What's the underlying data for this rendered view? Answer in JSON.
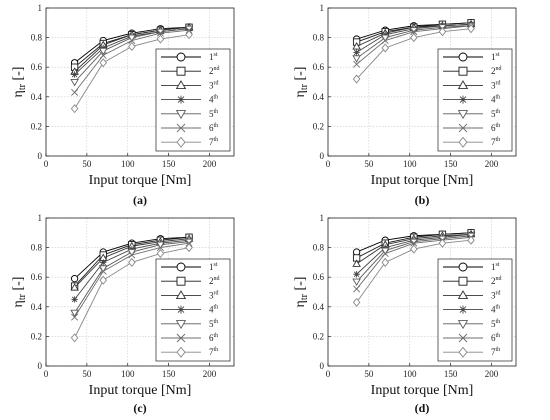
{
  "chart_data": [
    {
      "type": "line",
      "panel_label": "(a)",
      "xlabel": "Input torque [Nm]",
      "ylabel_main": "η",
      "ylabel_sub": "tr",
      "ylabel_unit": " [-]",
      "xlim": [
        0,
        230
      ],
      "ylim": [
        0,
        1
      ],
      "x_ticks": [
        "0",
        "50",
        "100",
        "150",
        "200"
      ],
      "y_ticks": [
        "0",
        "0.2",
        "0.4",
        "0.6",
        "0.8",
        "1"
      ],
      "grid": true,
      "legend_position": "bottom-right",
      "x": [
        35,
        70,
        105,
        140,
        175
      ],
      "series": [
        {
          "name": "1",
          "name_sup": "st",
          "marker": "circle",
          "color": "#000000",
          "values": [
            0.63,
            0.78,
            0.83,
            0.86,
            0.87
          ]
        },
        {
          "name": "2",
          "name_sup": "nd",
          "marker": "square",
          "color": "#1a1a1a",
          "values": [
            0.6,
            0.76,
            0.82,
            0.85,
            0.87
          ]
        },
        {
          "name": "3",
          "name_sup": "rd",
          "marker": "triangle-up",
          "color": "#333333",
          "values": [
            0.57,
            0.75,
            0.82,
            0.85,
            0.87
          ]
        },
        {
          "name": "4",
          "name_sup": "th",
          "marker": "star",
          "color": "#444444",
          "values": [
            0.55,
            0.73,
            0.81,
            0.84,
            0.86
          ]
        },
        {
          "name": "5",
          "name_sup": "th",
          "marker": "triangle-down",
          "color": "#5a5a5a",
          "values": [
            0.5,
            0.71,
            0.8,
            0.84,
            0.86
          ]
        },
        {
          "name": "6",
          "name_sup": "th",
          "marker": "x",
          "color": "#6e6e6e",
          "values": [
            0.43,
            0.68,
            0.78,
            0.83,
            0.85
          ]
        },
        {
          "name": "7",
          "name_sup": "th",
          "marker": "diamond",
          "color": "#888888",
          "values": [
            0.32,
            0.63,
            0.74,
            0.79,
            0.82
          ]
        }
      ]
    },
    {
      "type": "line",
      "panel_label": "(b)",
      "xlabel": "Input torque [Nm]",
      "ylabel_main": "η",
      "ylabel_sub": "tr",
      "ylabel_unit": " [-]",
      "xlim": [
        0,
        230
      ],
      "ylim": [
        0,
        1
      ],
      "x_ticks": [
        "0",
        "50",
        "100",
        "150",
        "200"
      ],
      "y_ticks": [
        "0",
        "0.2",
        "0.4",
        "0.6",
        "0.8",
        "1"
      ],
      "grid": true,
      "legend_position": "bottom-right",
      "x": [
        35,
        70,
        105,
        140,
        175
      ],
      "series": [
        {
          "name": "1",
          "name_sup": "st",
          "marker": "circle",
          "color": "#000000",
          "values": [
            0.79,
            0.85,
            0.88,
            0.89,
            0.9
          ]
        },
        {
          "name": "2",
          "name_sup": "nd",
          "marker": "square",
          "color": "#1a1a1a",
          "values": [
            0.77,
            0.84,
            0.87,
            0.89,
            0.9
          ]
        },
        {
          "name": "3",
          "name_sup": "rd",
          "marker": "triangle-up",
          "color": "#333333",
          "values": [
            0.74,
            0.83,
            0.87,
            0.88,
            0.89
          ]
        },
        {
          "name": "4",
          "name_sup": "th",
          "marker": "star",
          "color": "#444444",
          "values": [
            0.7,
            0.82,
            0.86,
            0.88,
            0.89
          ]
        },
        {
          "name": "5",
          "name_sup": "th",
          "marker": "triangle-down",
          "color": "#5a5a5a",
          "values": [
            0.66,
            0.8,
            0.85,
            0.87,
            0.88
          ]
        },
        {
          "name": "6",
          "name_sup": "th",
          "marker": "x",
          "color": "#6e6e6e",
          "values": [
            0.62,
            0.78,
            0.84,
            0.86,
            0.88
          ]
        },
        {
          "name": "7",
          "name_sup": "th",
          "marker": "diamond",
          "color": "#888888",
          "values": [
            0.52,
            0.73,
            0.8,
            0.84,
            0.86
          ]
        }
      ]
    },
    {
      "type": "line",
      "panel_label": "(c)",
      "xlabel": "Input torque [Nm]",
      "ylabel_main": "η",
      "ylabel_sub": "tr",
      "ylabel_unit": " [-]",
      "xlim": [
        0,
        230
      ],
      "ylim": [
        0,
        1
      ],
      "x_ticks": [
        "0",
        "50",
        "100",
        "150",
        "200"
      ],
      "y_ticks": [
        "0",
        "0.2",
        "0.4",
        "0.6",
        "0.8",
        "1"
      ],
      "grid": true,
      "legend_position": "bottom-right",
      "x": [
        35,
        70,
        105,
        140,
        175
      ],
      "series": [
        {
          "name": "1",
          "name_sup": "st",
          "marker": "circle",
          "color": "#000000",
          "values": [
            0.59,
            0.77,
            0.83,
            0.86,
            0.87
          ]
        },
        {
          "name": "2",
          "name_sup": "nd",
          "marker": "square",
          "color": "#1a1a1a",
          "values": [
            0.54,
            0.75,
            0.82,
            0.85,
            0.87
          ]
        },
        {
          "name": "3",
          "name_sup": "rd",
          "marker": "triangle-up",
          "color": "#333333",
          "values": [
            0.53,
            0.73,
            0.81,
            0.84,
            0.86
          ]
        },
        {
          "name": "4",
          "name_sup": "th",
          "marker": "star",
          "color": "#444444",
          "values": [
            0.45,
            0.7,
            0.79,
            0.83,
            0.85
          ]
        },
        {
          "name": "5",
          "name_sup": "th",
          "marker": "triangle-down",
          "color": "#5a5a5a",
          "values": [
            0.36,
            0.66,
            0.77,
            0.82,
            0.84
          ]
        },
        {
          "name": "6",
          "name_sup": "th",
          "marker": "x",
          "color": "#6e6e6e",
          "values": [
            0.33,
            0.64,
            0.75,
            0.8,
            0.83
          ]
        },
        {
          "name": "7",
          "name_sup": "th",
          "marker": "diamond",
          "color": "#888888",
          "values": [
            0.19,
            0.58,
            0.7,
            0.76,
            0.8
          ]
        }
      ]
    },
    {
      "type": "line",
      "panel_label": "(d)",
      "xlabel": "Input torque [Nm]",
      "ylabel_main": "η",
      "ylabel_sub": "tr",
      "ylabel_unit": " [-]",
      "xlim": [
        0,
        230
      ],
      "ylim": [
        0,
        1
      ],
      "x_ticks": [
        "0",
        "50",
        "100",
        "150",
        "200"
      ],
      "y_ticks": [
        "0",
        "0.2",
        "0.4",
        "0.6",
        "0.8",
        "1"
      ],
      "grid": true,
      "legend_position": "bottom-right",
      "x": [
        35,
        70,
        105,
        140,
        175
      ],
      "series": [
        {
          "name": "1",
          "name_sup": "st",
          "marker": "circle",
          "color": "#000000",
          "values": [
            0.77,
            0.85,
            0.88,
            0.89,
            0.9
          ]
        },
        {
          "name": "2",
          "name_sup": "nd",
          "marker": "square",
          "color": "#1a1a1a",
          "values": [
            0.73,
            0.83,
            0.87,
            0.89,
            0.9
          ]
        },
        {
          "name": "3",
          "name_sup": "rd",
          "marker": "triangle-up",
          "color": "#333333",
          "values": [
            0.69,
            0.82,
            0.86,
            0.88,
            0.89
          ]
        },
        {
          "name": "4",
          "name_sup": "th",
          "marker": "star",
          "color": "#444444",
          "values": [
            0.62,
            0.8,
            0.85,
            0.87,
            0.89
          ]
        },
        {
          "name": "5",
          "name_sup": "th",
          "marker": "triangle-down",
          "color": "#5a5a5a",
          "values": [
            0.57,
            0.78,
            0.84,
            0.86,
            0.88
          ]
        },
        {
          "name": "6",
          "name_sup": "th",
          "marker": "x",
          "color": "#6e6e6e",
          "values": [
            0.52,
            0.76,
            0.83,
            0.85,
            0.87
          ]
        },
        {
          "name": "7",
          "name_sup": "th",
          "marker": "diamond",
          "color": "#888888",
          "values": [
            0.43,
            0.7,
            0.79,
            0.83,
            0.85
          ]
        }
      ]
    }
  ]
}
